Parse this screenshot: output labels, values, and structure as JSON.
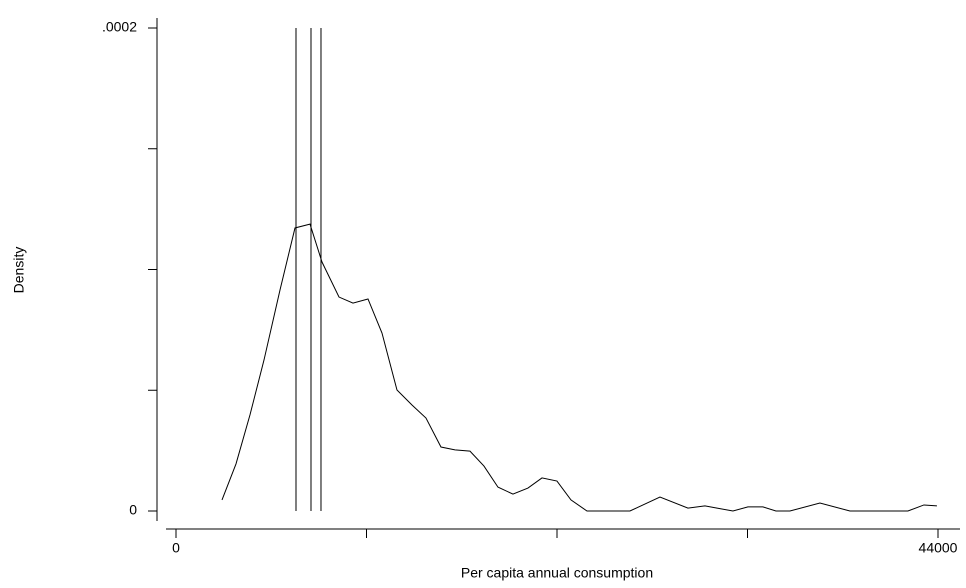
{
  "chart_data": {
    "type": "line",
    "xlabel": "Per capita annual consumption",
    "ylabel": "Density",
    "x": [
      2656,
      3464,
      4272,
      5081,
      6005,
      6871,
      7737,
      8430,
      9411,
      10220,
      11086,
      11894,
      12760,
      13626,
      14434,
      15300,
      16109,
      16975,
      17783,
      18591,
      19457,
      20323,
      21132,
      21998,
      22806,
      23730,
      26212,
      27945,
      29561,
      30543,
      32159,
      33025,
      33891,
      34642,
      35450,
      37182,
      38915,
      42263,
      43187,
      43938
    ],
    "values": [
      4.6e-06,
      1.95e-05,
      3.98e-05,
      6.25e-05,
      9.15e-05,
      0.0001172,
      0.0001188,
      0.0001031,
      8.86e-05,
      8.61e-05,
      8.78e-05,
      7.37e-05,
      5.01e-05,
      4.39e-05,
      3.85e-05,
      2.65e-05,
      2.53e-05,
      2.48e-05,
      1.86e-05,
      9.9e-06,
      7e-06,
      9.5e-06,
      1.37e-05,
      1.24e-05,
      4.6e-06,
      0,
      0,
      5.8e-06,
      1.2e-06,
      2.1e-06,
      0,
      1.7e-06,
      1.7e-06,
      0,
      0,
      3.3e-06,
      0,
      0,
      2.5e-06,
      2.1e-06
    ],
    "color": "#000000",
    "reference_lines": [
      6929,
      7795,
      8372
    ],
    "xlim": [
      0,
      44000
    ],
    "xticks": [
      0,
      44000
    ],
    "xminorticks": [
      11000,
      22000,
      33000
    ],
    "ylim": [
      0,
      0.0002
    ],
    "yticks": [
      0,
      {
        "value": 0.0002,
        "label": ".0002"
      }
    ],
    "yminorticks": [
      5e-05,
      0.0001,
      0.00015
    ],
    "grid": false
  }
}
